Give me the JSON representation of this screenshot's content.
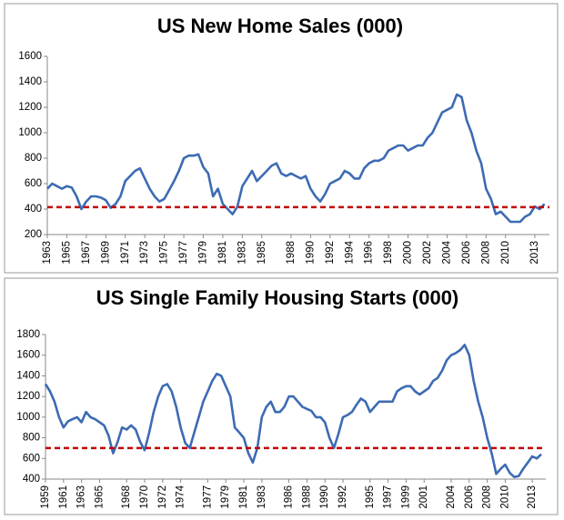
{
  "chart_data": [
    {
      "type": "line",
      "title": "US New Home Sales (000)",
      "x": [
        1963,
        1963.5,
        1964,
        1964.5,
        1965,
        1965.5,
        1966,
        1966.5,
        1967,
        1967.5,
        1968,
        1968.5,
        1969,
        1969.5,
        1970,
        1970.5,
        1971,
        1971.5,
        1972,
        1972.5,
        1973,
        1973.5,
        1974,
        1974.5,
        1975,
        1975.5,
        1976,
        1976.5,
        1977,
        1977.5,
        1978,
        1978.5,
        1979,
        1979.5,
        1980,
        1980.5,
        1981,
        1981.5,
        1982,
        1982.5,
        1983,
        1983.5,
        1984,
        1984.5,
        1985,
        1985.5,
        1986,
        1986.5,
        1987,
        1987.5,
        1988,
        1988.5,
        1989,
        1989.5,
        1990,
        1990.5,
        1991,
        1991.5,
        1992,
        1992.5,
        1993,
        1993.5,
        1994,
        1994.5,
        1995,
        1995.5,
        1996,
        1996.5,
        1997,
        1997.5,
        1998,
        1998.5,
        1999,
        1999.5,
        2000,
        2000.5,
        2001,
        2001.5,
        2002,
        2002.5,
        2003,
        2003.5,
        2004,
        2004.5,
        2005,
        2005.5,
        2006,
        2006.5,
        2007,
        2007.5,
        2008,
        2008.5,
        2009,
        2009.5,
        2010,
        2010.5,
        2011,
        2011.5,
        2012,
        2012.5,
        2013,
        2013.5,
        2014
      ],
      "series": [
        {
          "color": "#3d6bb3",
          "values": [
            560,
            600,
            580,
            560,
            580,
            570,
            500,
            400,
            460,
            500,
            500,
            490,
            470,
            410,
            440,
            500,
            620,
            660,
            700,
            720,
            640,
            560,
            500,
            460,
            480,
            550,
            620,
            700,
            800,
            820,
            820,
            830,
            730,
            680,
            500,
            560,
            440,
            400,
            360,
            420,
            580,
            640,
            700,
            620,
            660,
            700,
            740,
            760,
            680,
            660,
            680,
            660,
            640,
            660,
            560,
            500,
            460,
            520,
            600,
            620,
            640,
            700,
            680,
            640,
            640,
            720,
            760,
            780,
            780,
            800,
            860,
            880,
            900,
            900,
            860,
            880,
            900,
            900,
            960,
            1000,
            1080,
            1160,
            1180,
            1200,
            1300,
            1280,
            1100,
            1000,
            860,
            760,
            560,
            480,
            360,
            380,
            340,
            300,
            300,
            300,
            340,
            360,
            420,
            400,
            440
          ]
        }
      ],
      "reference_line": {
        "value": 415,
        "color": "#c00000"
      },
      "xlim": [
        1963,
        2014.5
      ],
      "xticks": [
        1963,
        1965,
        1967,
        1969,
        1971,
        1973,
        1975,
        1977,
        1979,
        1981,
        1983,
        1985,
        1988,
        1990,
        1992,
        1994,
        1996,
        1998,
        2000,
        2002,
        2004,
        2006,
        2008,
        2010,
        2013
      ],
      "ylim": [
        200,
        1600
      ],
      "yticks": [
        200,
        400,
        600,
        800,
        1000,
        1200,
        1400,
        1600
      ]
    },
    {
      "type": "line",
      "title": "US Single Family Housing Starts (000)",
      "x": [
        1959,
        1959.5,
        1960,
        1960.5,
        1961,
        1961.5,
        1962,
        1962.5,
        1963,
        1963.5,
        1964,
        1964.5,
        1965,
        1965.5,
        1966,
        1966.5,
        1967,
        1967.5,
        1968,
        1968.5,
        1969,
        1969.5,
        1970,
        1970.5,
        1971,
        1971.5,
        1972,
        1972.5,
        1973,
        1973.5,
        1974,
        1974.5,
        1975,
        1975.5,
        1976,
        1976.5,
        1977,
        1977.5,
        1978,
        1978.5,
        1979,
        1979.5,
        1980,
        1980.5,
        1981,
        1981.5,
        1982,
        1982.5,
        1983,
        1983.5,
        1984,
        1984.5,
        1985,
        1985.5,
        1986,
        1986.5,
        1987,
        1987.5,
        1988,
        1988.5,
        1989,
        1989.5,
        1990,
        1990.5,
        1991,
        1991.5,
        1992,
        1992.5,
        1993,
        1993.5,
        1994,
        1994.5,
        1995,
        1995.5,
        1996,
        1996.5,
        1997,
        1997.5,
        1998,
        1998.5,
        1999,
        1999.5,
        2000,
        2000.5,
        2001,
        2001.5,
        2002,
        2002.5,
        2003,
        2003.5,
        2004,
        2004.5,
        2005,
        2005.5,
        2006,
        2006.5,
        2007,
        2007.5,
        2008,
        2008.5,
        2009,
        2009.5,
        2010,
        2010.5,
        2011,
        2011.5,
        2012,
        2012.5,
        2013,
        2013.5,
        2014
      ],
      "series": [
        {
          "color": "#3d6bb3",
          "values": [
            1320,
            1250,
            1150,
            1000,
            900,
            960,
            980,
            1000,
            950,
            1050,
            1000,
            980,
            950,
            920,
            820,
            650,
            760,
            900,
            880,
            920,
            880,
            760,
            680,
            850,
            1050,
            1200,
            1300,
            1320,
            1250,
            1100,
            900,
            750,
            700,
            850,
            1000,
            1150,
            1250,
            1350,
            1420,
            1400,
            1300,
            1200,
            900,
            850,
            800,
            650,
            560,
            700,
            1000,
            1100,
            1150,
            1050,
            1050,
            1100,
            1200,
            1200,
            1150,
            1100,
            1080,
            1060,
            1000,
            1000,
            950,
            800,
            700,
            840,
            1000,
            1020,
            1050,
            1120,
            1180,
            1150,
            1050,
            1100,
            1150,
            1150,
            1150,
            1150,
            1250,
            1280,
            1300,
            1300,
            1250,
            1220,
            1250,
            1280,
            1350,
            1380,
            1450,
            1550,
            1600,
            1620,
            1650,
            1700,
            1600,
            1350,
            1150,
            1000,
            800,
            650,
            450,
            500,
            540,
            460,
            420,
            430,
            500,
            560,
            620,
            600,
            640
          ]
        }
      ],
      "reference_line": {
        "value": 700,
        "color": "#c00000"
      },
      "xlim": [
        1959,
        2014.5
      ],
      "xticks": [
        1959,
        1961,
        1963,
        1965,
        1968,
        1970,
        1972,
        1974,
        1977,
        1979,
        1981,
        1983,
        1986,
        1988,
        1990,
        1992,
        1995,
        1997,
        1999,
        2001,
        2004,
        2006,
        2008,
        2010,
        2013
      ],
      "ylim": [
        400,
        1800
      ],
      "yticks": [
        400,
        600,
        800,
        1000,
        1200,
        1400,
        1600,
        1800
      ]
    }
  ]
}
